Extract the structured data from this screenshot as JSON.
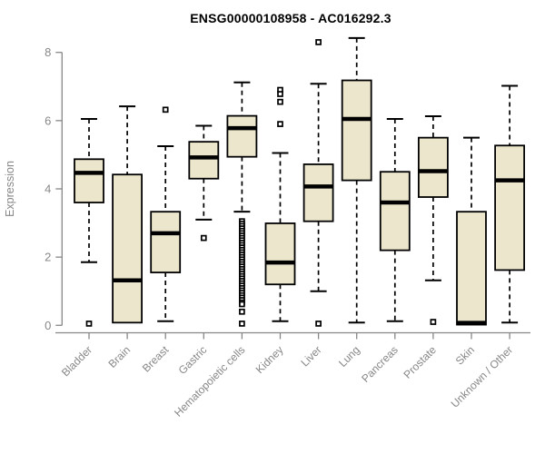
{
  "page": {
    "background": "#ffffff"
  },
  "chart_data": {
    "type": "boxplot",
    "title": "ENSG00000108958 - AC016292.3",
    "xlabel": "",
    "ylabel": "Expression",
    "ylim": [
      0,
      8
    ],
    "yticks": [
      0,
      2,
      4,
      6,
      8
    ],
    "grid": false,
    "legend_position": "none",
    "categories": [
      "Bladder",
      "Brain",
      "Breast",
      "Gastric",
      "Hematopoietic cells",
      "Kidney",
      "Liver",
      "Lung",
      "Pancreas",
      "Prostate",
      "Skin",
      "Unknown / Other"
    ],
    "boxes": [
      {
        "category": "Bladder",
        "whisker_low": 1.85,
        "q1": 3.6,
        "median": 4.47,
        "q3": 4.87,
        "whisker_high": 6.05,
        "outliers": [
          0.05
        ]
      },
      {
        "category": "Brain",
        "whisker_low": 0.08,
        "q1": 0.08,
        "median": 1.32,
        "q3": 4.42,
        "whisker_high": 6.42,
        "outliers": []
      },
      {
        "category": "Breast",
        "whisker_low": 0.12,
        "q1": 1.55,
        "median": 2.7,
        "q3": 3.33,
        "whisker_high": 5.25,
        "outliers": [
          6.32
        ]
      },
      {
        "category": "Gastric",
        "whisker_low": 3.1,
        "q1": 4.3,
        "median": 4.92,
        "q3": 5.38,
        "whisker_high": 5.85,
        "outliers": [
          2.56
        ]
      },
      {
        "category": "Hematopoietic cells",
        "whisker_low": 3.33,
        "q1": 4.94,
        "median": 5.78,
        "q3": 6.14,
        "whisker_high": 7.12,
        "outliers": [
          3.05,
          2.98,
          2.91,
          2.84,
          2.77,
          2.7,
          2.63,
          2.56,
          2.49,
          2.42,
          2.35,
          2.28,
          2.21,
          2.14,
          2.07,
          2.0,
          1.93,
          1.86,
          1.79,
          1.72,
          1.65,
          1.58,
          1.51,
          1.44,
          1.37,
          1.3,
          1.23,
          1.16,
          1.09,
          1.02,
          0.95,
          0.88,
          0.81,
          0.74,
          0.67,
          0.62,
          0.4,
          0.05
        ]
      },
      {
        "category": "Kidney",
        "whisker_low": 0.12,
        "q1": 1.2,
        "median": 1.84,
        "q3": 2.99,
        "whisker_high": 5.05,
        "outliers": [
          6.9,
          6.78,
          6.55,
          5.9
        ]
      },
      {
        "category": "Liver",
        "whisker_low": 1.0,
        "q1": 3.05,
        "median": 4.07,
        "q3": 4.72,
        "whisker_high": 7.08,
        "outliers": [
          8.3,
          0.05
        ]
      },
      {
        "category": "Lung",
        "whisker_low": 0.08,
        "q1": 4.25,
        "median": 6.05,
        "q3": 7.18,
        "whisker_high": 8.42,
        "outliers": []
      },
      {
        "category": "Pancreas",
        "whisker_low": 0.12,
        "q1": 2.2,
        "median": 3.6,
        "q3": 4.5,
        "whisker_high": 6.05,
        "outliers": []
      },
      {
        "category": "Prostate",
        "whisker_low": 1.32,
        "q1": 3.76,
        "median": 4.52,
        "q3": 5.5,
        "whisker_high": 6.13,
        "outliers": [
          0.1
        ]
      },
      {
        "category": "Skin",
        "whisker_low": 0.02,
        "q1": 0.02,
        "median": 0.07,
        "q3": 3.33,
        "whisker_high": 5.5,
        "outliers": []
      },
      {
        "category": "Unknown / Other",
        "whisker_low": 0.08,
        "q1": 1.62,
        "median": 4.25,
        "q3": 5.27,
        "whisker_high": 7.02,
        "outliers": []
      }
    ],
    "colors": {
      "box_fill": "#ece7cc",
      "box_border": "#000000",
      "median": "#000000",
      "whisker": "#000000",
      "axis": "#878787",
      "tick_label": "#878787",
      "title": "#000000",
      "background": "#ffffff"
    }
  }
}
